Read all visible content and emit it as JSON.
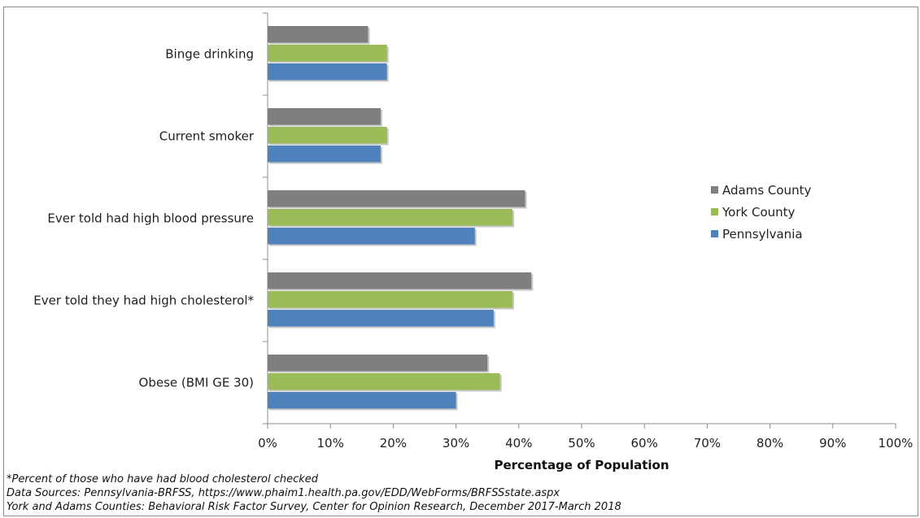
{
  "chart_data": {
    "type": "bar",
    "orientation": "horizontal",
    "categories": [
      "Binge drinking",
      "Current smoker",
      "Ever told had high blood pressure",
      "Ever told they had high cholesterol*",
      "Obese (BMI GE 30)"
    ],
    "series": [
      {
        "name": "Adams County",
        "color": "#7f7f7f",
        "values": [
          16,
          18,
          41,
          42,
          35
        ]
      },
      {
        "name": "York County",
        "color": "#9bbb59",
        "values": [
          19,
          19,
          39,
          39,
          37
        ]
      },
      {
        "name": "Pennsylvania",
        "color": "#4f81bd",
        "values": [
          19,
          18,
          33,
          36,
          30
        ]
      }
    ],
    "xlabel": "Percentage of Population",
    "ylabel": "",
    "xlim": [
      0,
      100
    ],
    "xticks": [
      "0%",
      "10%",
      "20%",
      "30%",
      "40%",
      "50%",
      "60%",
      "70%",
      "80%",
      "90%",
      "100%"
    ],
    "grid": false,
    "legend_position": "right"
  },
  "footnotes": [
    "*Percent of those who have had blood cholesterol checked",
    "Data Sources: Pennsylvania-BRFSS, https://www.phaim1.health.pa.gov/EDD/WebForms/BRFSSstate.aspx",
    "York and Adams Counties: Behavioral Risk Factor Survey, Center for Opinion Research, December 2017-March 2018"
  ]
}
